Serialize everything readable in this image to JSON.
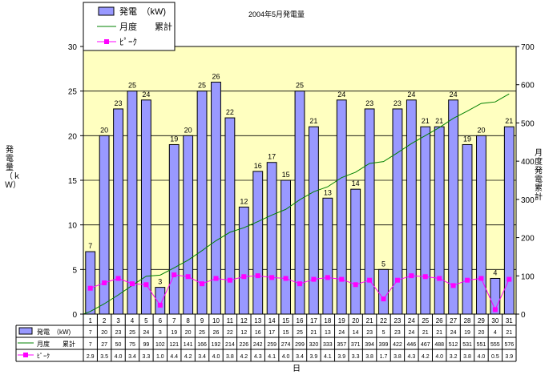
{
  "chart_data": {
    "type": "bar",
    "title": "2004年5月発電量",
    "xlabel": "日",
    "ylabel": "発電量（ｋＷ）",
    "y2label": "月度発電累計",
    "ylim": [
      0,
      30
    ],
    "y2lim": [
      0,
      700
    ],
    "y_ticks": [
      0,
      5,
      10,
      15,
      20,
      25,
      30
    ],
    "y2_ticks": [
      0,
      100,
      200,
      300,
      400,
      500,
      600,
      700
    ],
    "grid": true,
    "legend_position": "top-left",
    "categories": [
      "1",
      "2",
      "3",
      "4",
      "5",
      "6",
      "7",
      "8",
      "9",
      "10",
      "11",
      "12",
      "13",
      "14",
      "15",
      "16",
      "17",
      "18",
      "19",
      "20",
      "21",
      "22",
      "23",
      "24",
      "25",
      "26",
      "27",
      "28",
      "29",
      "30",
      "31"
    ],
    "series": [
      {
        "name": "発電　（kW)",
        "table_name": "発電　（kW)",
        "kind": "bar",
        "axis": "left",
        "color": "#9999ff",
        "values": [
          7,
          20,
          23,
          25,
          24,
          3,
          19,
          20,
          25,
          26,
          22,
          12,
          16,
          17,
          15,
          25,
          21,
          13,
          24,
          14,
          23,
          5,
          23,
          24,
          21,
          21,
          24,
          19,
          20,
          4,
          21
        ]
      },
      {
        "name": "月度　　累計",
        "table_name": "月度　　累計",
        "kind": "line",
        "axis": "right",
        "color": "#008000",
        "values": [
          7,
          27,
          50,
          75,
          99,
          102,
          121,
          141,
          166,
          192,
          214,
          226,
          242,
          259,
          274,
          299,
          320,
          333,
          357,
          371,
          394,
          399,
          422,
          446,
          467,
          488,
          512,
          531,
          551,
          555,
          576
        ]
      },
      {
        "name": "ﾋﾟｰｸ",
        "table_name": "ﾋﾟｰｸ",
        "kind": "line",
        "axis": "left",
        "color": "#ff00ff",
        "values": [
          2.9,
          3.5,
          4.0,
          3.4,
          3.3,
          1.0,
          4.4,
          4.2,
          3.4,
          4.0,
          3.8,
          4.2,
          4.3,
          4.1,
          4.0,
          3.4,
          3.9,
          4.1,
          3.9,
          3.3,
          3.8,
          1.7,
          3.8,
          4.3,
          4.2,
          4.0,
          3.2,
          3.8,
          4.0,
          0.5,
          3.9
        ]
      }
    ]
  }
}
